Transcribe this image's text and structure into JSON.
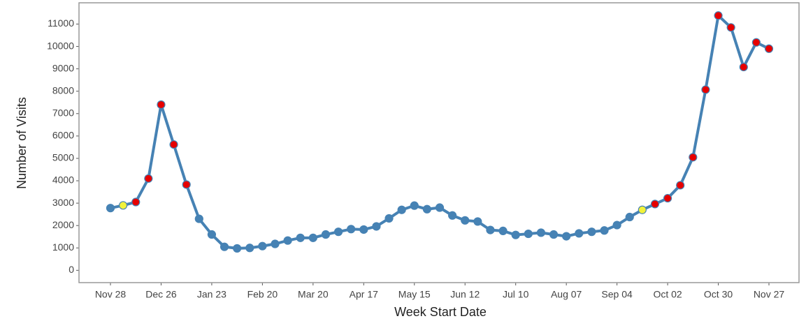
{
  "chart_data": {
    "type": "line",
    "x_label": "Week Start Date",
    "y_label": "Number of Visits",
    "categories": [
      "Nov 28",
      null,
      null,
      null,
      "Dec 26",
      null,
      null,
      null,
      "Jan 23",
      null,
      null,
      null,
      "Feb 20",
      null,
      null,
      null,
      "Mar 20",
      null,
      null,
      null,
      "Apr 17",
      null,
      null,
      null,
      "May 15",
      null,
      null,
      null,
      "Jun 12",
      null,
      null,
      null,
      "Jul 10",
      null,
      null,
      null,
      "Aug 07",
      null,
      null,
      null,
      "Sep 04",
      null,
      null,
      null,
      "Oct 02",
      null,
      null,
      null,
      "Oct 30",
      null,
      null,
      null,
      "Nov 27"
    ],
    "series": [
      {
        "color": "#4682b4",
        "values": [
          2780,
          2900,
          3050,
          4100,
          7400,
          5620,
          3830,
          2300,
          1600,
          1050,
          980,
          1000,
          1080,
          1180,
          1330,
          1450,
          1450,
          1600,
          1720,
          1840,
          1820,
          1960,
          2320,
          2700,
          2890,
          2730,
          2800,
          2450,
          2230,
          2180,
          1800,
          1760,
          1580,
          1630,
          1680,
          1600,
          1520,
          1650,
          1720,
          1780,
          2020,
          2380,
          2700,
          2960,
          3220,
          3800,
          5050,
          8070,
          11380,
          10850,
          9080,
          10180,
          9900
        ],
        "point_colors": [
          "#4682b4",
          "#f2f23a",
          "#e60000",
          "#e60000",
          "#e60000",
          "#e60000",
          "#e60000",
          "#4682b4",
          "#4682b4",
          "#4682b4",
          "#4682b4",
          "#4682b4",
          "#4682b4",
          "#4682b4",
          "#4682b4",
          "#4682b4",
          "#4682b4",
          "#4682b4",
          "#4682b4",
          "#4682b4",
          "#4682b4",
          "#4682b4",
          "#4682b4",
          "#4682b4",
          "#4682b4",
          "#4682b4",
          "#4682b4",
          "#4682b4",
          "#4682b4",
          "#4682b4",
          "#4682b4",
          "#4682b4",
          "#4682b4",
          "#4682b4",
          "#4682b4",
          "#4682b4",
          "#4682b4",
          "#4682b4",
          "#4682b4",
          "#4682b4",
          "#4682b4",
          "#4682b4",
          "#f2f23a",
          "#e60000",
          "#e60000",
          "#e60000",
          "#e60000",
          "#e60000",
          "#e60000",
          "#e60000",
          "#e60000",
          "#e60000",
          "#e60000"
        ]
      }
    ],
    "ylim": [
      -550,
      11950
    ],
    "yticks": [
      0,
      1000,
      2000,
      3000,
      4000,
      5000,
      6000,
      7000,
      8000,
      9000,
      10000,
      11000
    ],
    "grid": true
  }
}
